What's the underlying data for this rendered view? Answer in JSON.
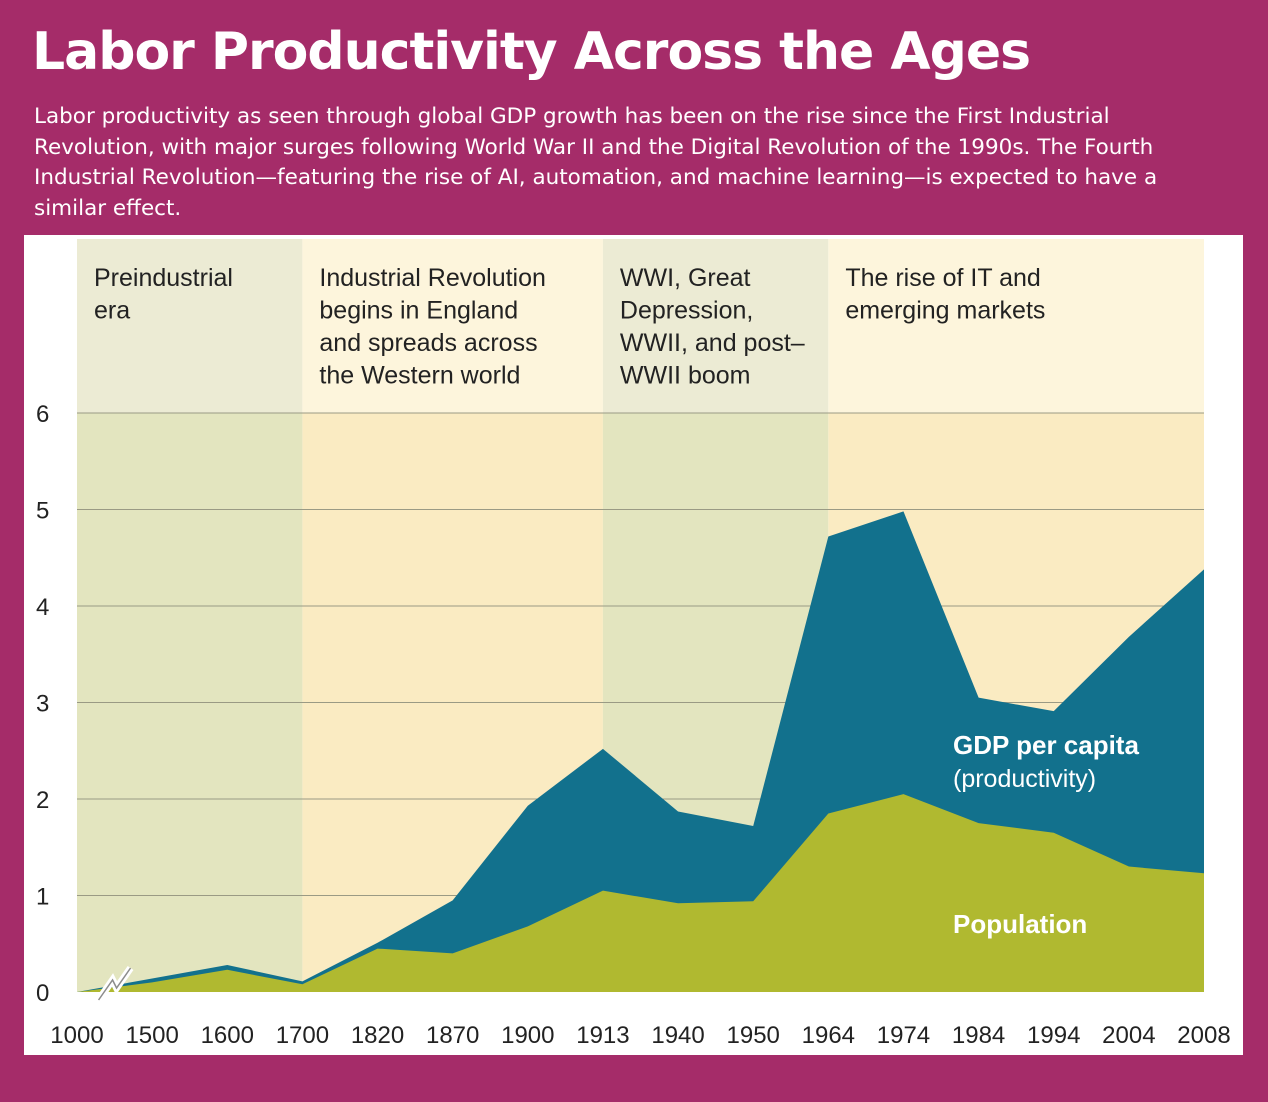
{
  "header": {
    "title": "Labor Productivity Across the Ages",
    "subtitle": "Labor productivity as seen through global GDP growth has been on the rise since the First Industrial Revolution, with major surges following World War II and the Digital Revolution of the 1990s. The Fourth Industrial Revolution—featuring the rise of AI, automation, and machine learning—is expected to have a similar effect."
  },
  "colors": {
    "page_background": "#a52c69",
    "gdp_per_capita": "#12718d",
    "population": "#b0b930",
    "era_green_top": "#ecebd4",
    "era_green_plot": "#e3e5bf",
    "era_yellow_top": "#fdf5dc",
    "era_yellow_plot": "#faebc2",
    "gridline": "#9a9a84"
  },
  "chart_data": {
    "type": "area",
    "stacked": true,
    "categories": [
      "1000",
      "1500",
      "1600",
      "1700",
      "1820",
      "1870",
      "1900",
      "1913",
      "1940",
      "1950",
      "1964",
      "1974",
      "1984",
      "1994",
      "2004",
      "2008"
    ],
    "series": [
      {
        "name": "Population",
        "values": [
          0,
          0.1,
          0.23,
          0.08,
          0.45,
          0.4,
          0.68,
          1.05,
          0.92,
          0.94,
          1.85,
          2.05,
          1.75,
          1.65,
          1.3,
          1.23
        ]
      },
      {
        "name": "GDP per capita (productivity)",
        "values": [
          0,
          0.04,
          0.05,
          0.03,
          0.06,
          0.55,
          1.25,
          1.47,
          0.95,
          0.78,
          2.87,
          2.93,
          1.3,
          1.26,
          2.38,
          3.15
        ]
      }
    ],
    "series_labels": {
      "gdp_bold": "GDP per capita",
      "gdp_sub": "(productivity)",
      "population": "Population"
    },
    "yticks": [
      0,
      1,
      2,
      3,
      4,
      5,
      6
    ],
    "ylim": [
      0,
      6
    ],
    "grid": true,
    "axis_break_between": [
      "1000",
      "1500"
    ],
    "eras": [
      {
        "label_lines": [
          "Preindustrial",
          "era"
        ],
        "from": "1000",
        "to": "1700",
        "shade": "green"
      },
      {
        "label_lines": [
          "Industrial Revolution",
          "begins in England",
          "and spreads across",
          "the Western world"
        ],
        "from": "1700",
        "to": "1913",
        "shade": "yellow"
      },
      {
        "label_lines": [
          "WWI, Great",
          "Depression,",
          "WWII, and post–",
          "WWII boom"
        ],
        "from": "1913",
        "to": "1964",
        "shade": "green"
      },
      {
        "label_lines": [
          "The rise of IT and",
          "emerging markets"
        ],
        "from": "1964",
        "to": "2008",
        "shade": "yellow"
      }
    ]
  }
}
